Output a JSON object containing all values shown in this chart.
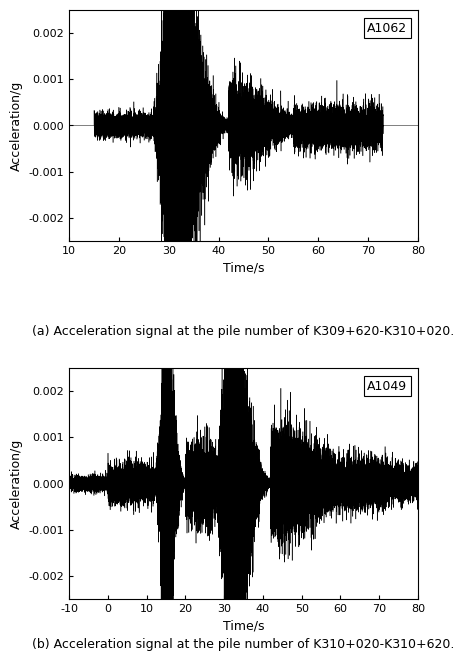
{
  "plot1": {
    "label": "A1062",
    "xlim": [
      10,
      80
    ],
    "ylim": [
      -0.0025,
      0.0025
    ],
    "xticks": [
      10,
      20,
      30,
      40,
      50,
      60,
      70,
      80
    ],
    "yticks": [
      -0.002,
      -0.001,
      0.0,
      0.001,
      0.002
    ],
    "xlabel": "Time/s",
    "ylabel": "Acceleration/g",
    "caption": "(a) Acceleration signal at the pile number of K309+620-K310+020."
  },
  "plot2": {
    "label": "A1049",
    "xlim": [
      -10,
      80
    ],
    "ylim": [
      -0.0025,
      0.0025
    ],
    "xticks": [
      -10,
      0,
      10,
      20,
      30,
      40,
      50,
      60,
      70,
      80
    ],
    "yticks": [
      -0.002,
      -0.001,
      0.0,
      0.001,
      0.002
    ],
    "xlabel": "Time/s",
    "ylabel": "Acceleration/g",
    "caption": "(b) Acceleration signal at the pile number of K310+020-K310+620."
  },
  "line_color": "#000000",
  "background_color": "#ffffff",
  "label_fontsize": 9,
  "tick_fontsize": 8,
  "caption_fontsize": 9
}
